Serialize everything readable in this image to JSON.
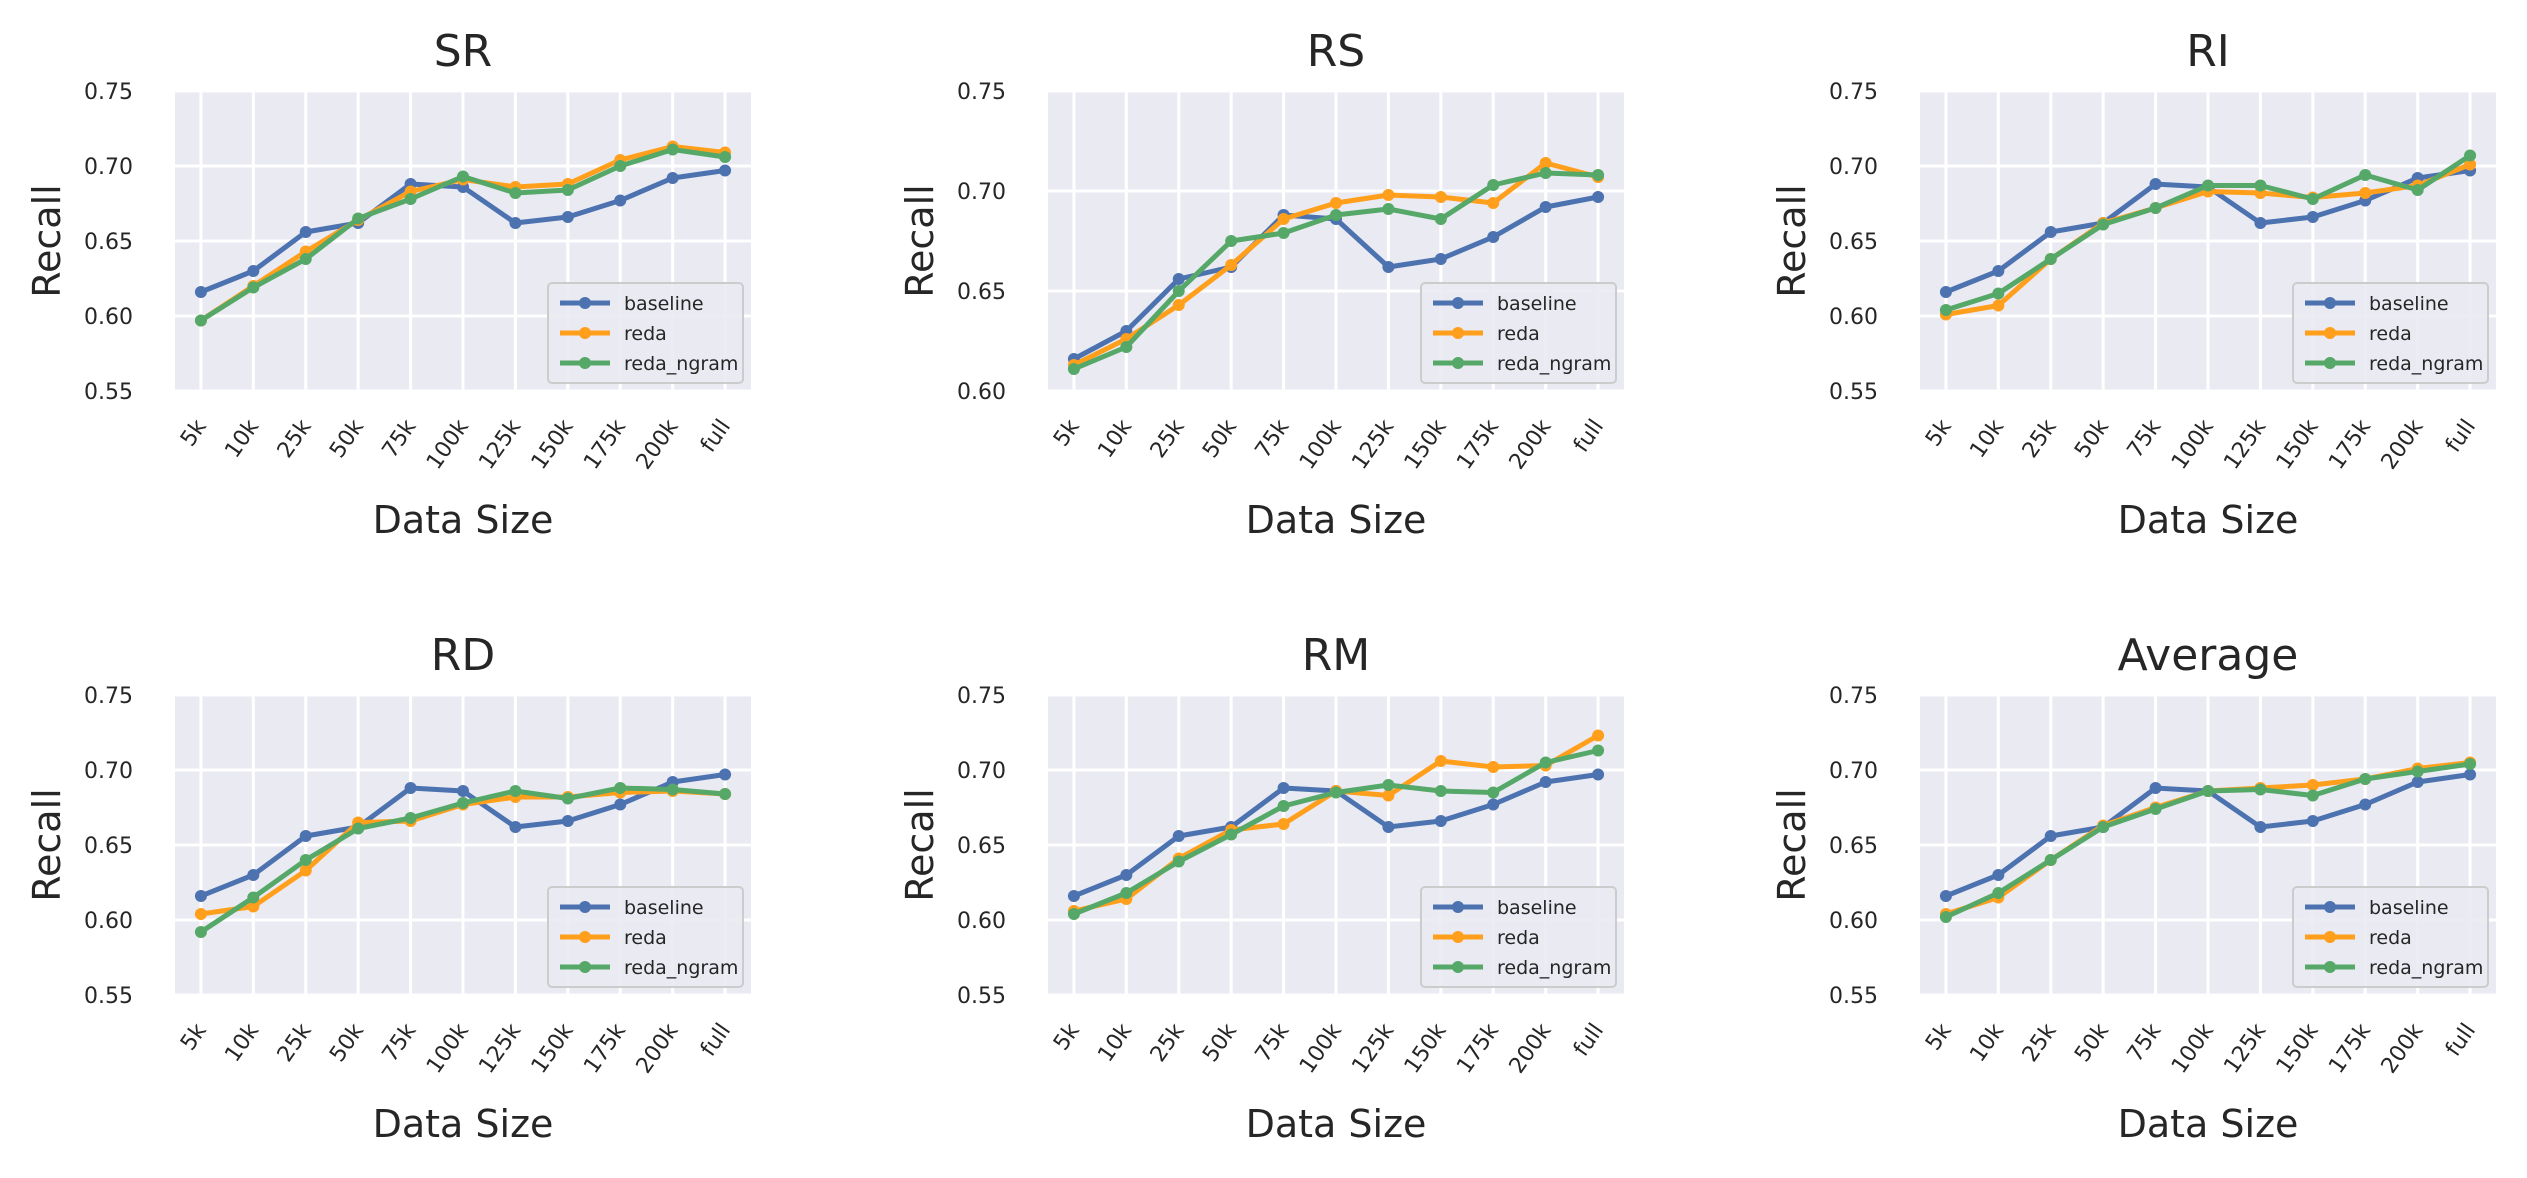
{
  "figure": {
    "layout": "2x3 grid of line charts",
    "colors": {
      "baseline": "#4c72b0",
      "reda": "#ff9f1c",
      "reda_ngram": "#55a868",
      "plot_background": "#eaeaf2",
      "grid": "#ffffff"
    }
  },
  "chart_data": [
    {
      "type": "line",
      "title": "SR",
      "xlabel": "Data Size",
      "ylabel": "Recall",
      "categories": [
        "5k",
        "10k",
        "25k",
        "50k",
        "75k",
        "100k",
        "125k",
        "150k",
        "175k",
        "200k",
        "full"
      ],
      "ylim": [
        0.55,
        0.75
      ],
      "yticks": [
        "0.55",
        "0.60",
        "0.65",
        "0.70",
        "0.75"
      ],
      "grid": true,
      "legend": "lower-right",
      "series": [
        {
          "name": "baseline",
          "values": [
            0.616,
            0.63,
            0.656,
            0.662,
            0.688,
            0.686,
            0.662,
            0.666,
            0.677,
            0.692,
            0.697
          ]
        },
        {
          "name": "reda",
          "values": [
            0.597,
            0.62,
            0.643,
            0.664,
            0.683,
            0.691,
            0.686,
            0.688,
            0.704,
            0.713,
            0.709
          ]
        },
        {
          "name": "reda_ngram",
          "values": [
            0.597,
            0.619,
            0.638,
            0.665,
            0.678,
            0.693,
            0.682,
            0.684,
            0.7,
            0.711,
            0.706
          ]
        }
      ]
    },
    {
      "type": "line",
      "title": "RS",
      "xlabel": "Data Size",
      "ylabel": "Recall",
      "categories": [
        "5k",
        "10k",
        "25k",
        "50k",
        "75k",
        "100k",
        "125k",
        "150k",
        "175k",
        "200k",
        "full"
      ],
      "ylim": [
        0.6,
        0.75
      ],
      "yticks": [
        "0.60",
        "0.65",
        "0.70",
        "0.75"
      ],
      "grid": true,
      "legend": "lower-right",
      "series": [
        {
          "name": "baseline",
          "values": [
            0.616,
            0.63,
            0.656,
            0.662,
            0.688,
            0.686,
            0.662,
            0.666,
            0.677,
            0.692,
            0.697
          ]
        },
        {
          "name": "reda",
          "values": [
            0.613,
            0.626,
            0.643,
            0.663,
            0.686,
            0.694,
            0.698,
            0.697,
            0.694,
            0.714,
            0.707
          ]
        },
        {
          "name": "reda_ngram",
          "values": [
            0.611,
            0.622,
            0.65,
            0.675,
            0.679,
            0.688,
            0.691,
            0.686,
            0.703,
            0.709,
            0.708
          ]
        }
      ]
    },
    {
      "type": "line",
      "title": "RI",
      "xlabel": "Data Size",
      "ylabel": "Recall",
      "categories": [
        "5k",
        "10k",
        "25k",
        "50k",
        "75k",
        "100k",
        "125k",
        "150k",
        "175k",
        "200k",
        "full"
      ],
      "ylim": [
        0.55,
        0.75
      ],
      "yticks": [
        "0.55",
        "0.60",
        "0.65",
        "0.70",
        "0.75"
      ],
      "grid": true,
      "legend": "lower-right",
      "series": [
        {
          "name": "baseline",
          "values": [
            0.616,
            0.63,
            0.656,
            0.662,
            0.688,
            0.686,
            0.662,
            0.666,
            0.677,
            0.692,
            0.697
          ]
        },
        {
          "name": "reda",
          "values": [
            0.601,
            0.607,
            0.638,
            0.662,
            0.672,
            0.683,
            0.682,
            0.679,
            0.682,
            0.687,
            0.701
          ]
        },
        {
          "name": "reda_ngram",
          "values": [
            0.604,
            0.615,
            0.638,
            0.661,
            0.672,
            0.687,
            0.687,
            0.678,
            0.694,
            0.684,
            0.707
          ]
        }
      ]
    },
    {
      "type": "line",
      "title": "RD",
      "xlabel": "Data Size",
      "ylabel": "Recall",
      "categories": [
        "5k",
        "10k",
        "25k",
        "50k",
        "75k",
        "100k",
        "125k",
        "150k",
        "175k",
        "200k",
        "full"
      ],
      "ylim": [
        0.55,
        0.75
      ],
      "yticks": [
        "0.55",
        "0.60",
        "0.65",
        "0.70",
        "0.75"
      ],
      "grid": true,
      "legend": "lower-right",
      "series": [
        {
          "name": "baseline",
          "values": [
            0.616,
            0.63,
            0.656,
            0.662,
            0.688,
            0.686,
            0.662,
            0.666,
            0.677,
            0.692,
            0.697
          ]
        },
        {
          "name": "reda",
          "values": [
            0.604,
            0.609,
            0.633,
            0.665,
            0.666,
            0.677,
            0.682,
            0.682,
            0.685,
            0.686,
            0.684
          ]
        },
        {
          "name": "reda_ngram",
          "values": [
            0.592,
            0.615,
            0.64,
            0.661,
            0.668,
            0.678,
            0.686,
            0.681,
            0.688,
            0.687,
            0.684
          ]
        }
      ]
    },
    {
      "type": "line",
      "title": "RM",
      "xlabel": "Data Size",
      "ylabel": "Recall",
      "categories": [
        "5k",
        "10k",
        "25k",
        "50k",
        "75k",
        "100k",
        "125k",
        "150k",
        "175k",
        "200k",
        "full"
      ],
      "ylim": [
        0.55,
        0.75
      ],
      "yticks": [
        "0.55",
        "0.60",
        "0.65",
        "0.70",
        "0.75"
      ],
      "grid": true,
      "legend": "lower-right",
      "series": [
        {
          "name": "baseline",
          "values": [
            0.616,
            0.63,
            0.656,
            0.662,
            0.688,
            0.686,
            0.662,
            0.666,
            0.677,
            0.692,
            0.697
          ]
        },
        {
          "name": "reda",
          "values": [
            0.606,
            0.614,
            0.641,
            0.66,
            0.664,
            0.686,
            0.683,
            0.706,
            0.702,
            0.703,
            0.723
          ]
        },
        {
          "name": "reda_ngram",
          "values": [
            0.604,
            0.618,
            0.639,
            0.657,
            0.676,
            0.685,
            0.69,
            0.686,
            0.685,
            0.705,
            0.713
          ]
        }
      ]
    },
    {
      "type": "line",
      "title": "Average",
      "xlabel": "Data Size",
      "ylabel": "Recall",
      "categories": [
        "5k",
        "10k",
        "25k",
        "50k",
        "75k",
        "100k",
        "125k",
        "150k",
        "175k",
        "200k",
        "full"
      ],
      "ylim": [
        0.55,
        0.75
      ],
      "yticks": [
        "0.55",
        "0.60",
        "0.65",
        "0.70",
        "0.75"
      ],
      "grid": true,
      "legend": "lower-right",
      "series": [
        {
          "name": "baseline",
          "values": [
            0.616,
            0.63,
            0.656,
            0.662,
            0.688,
            0.686,
            0.662,
            0.666,
            0.677,
            0.692,
            0.697
          ]
        },
        {
          "name": "reda",
          "values": [
            0.604,
            0.615,
            0.64,
            0.663,
            0.675,
            0.686,
            0.688,
            0.69,
            0.694,
            0.701,
            0.705
          ]
        },
        {
          "name": "reda_ngram",
          "values": [
            0.602,
            0.618,
            0.64,
            0.662,
            0.674,
            0.686,
            0.687,
            0.683,
            0.694,
            0.699,
            0.704
          ]
        }
      ]
    }
  ]
}
